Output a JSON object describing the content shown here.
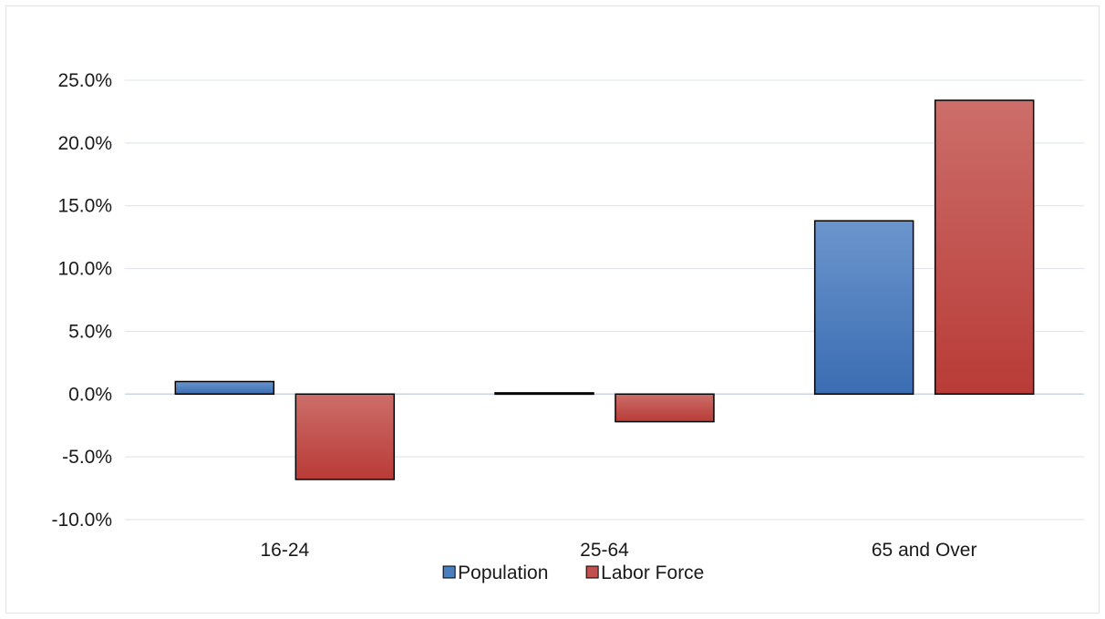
{
  "chart_data": {
    "type": "bar",
    "title": "",
    "xlabel": "",
    "ylabel": "",
    "categories": [
      "16-24",
      "25-64",
      "65 and Over"
    ],
    "series": [
      {
        "name": "Population",
        "values": [
          1.0,
          0.1,
          13.8
        ],
        "color": "#4a7ebf"
      },
      {
        "name": "Labor Force",
        "values": [
          -6.8,
          -2.2,
          23.4
        ],
        "color": "#c0504d"
      }
    ],
    "ylim": [
      -10,
      25
    ],
    "yticks": [
      25,
      20,
      15,
      10,
      5,
      0,
      -5,
      -10
    ],
    "ytick_format": "percent_1dp",
    "grid": true,
    "legend_position": "bottom"
  }
}
